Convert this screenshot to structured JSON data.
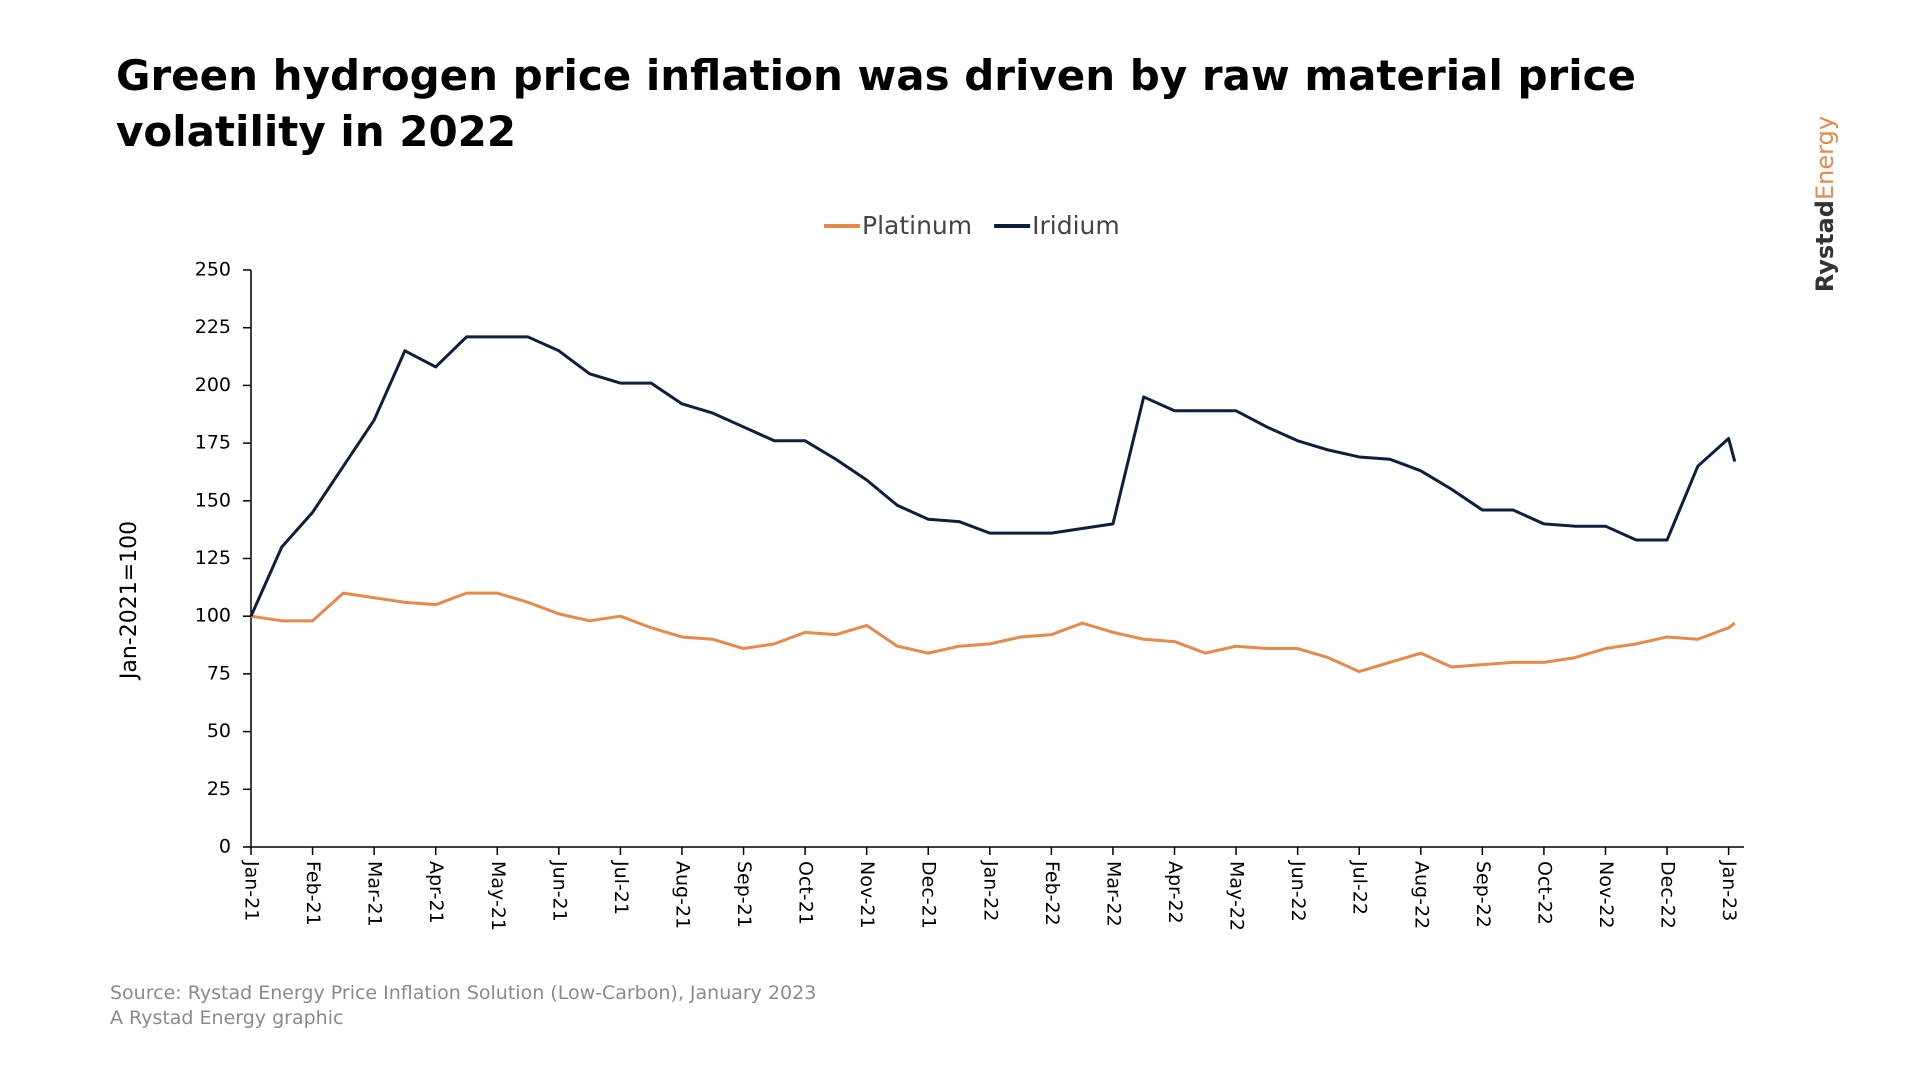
{
  "chart_data": {
    "type": "line",
    "title": "Green hydrogen price inflation was driven by raw material price volatility in 2022",
    "y_label": "Jan-2021=100",
    "source": "Source: Rystad Energy Price Inflation Solution (Low-Carbon), January 2023",
    "credit": "A Rystad Energy graphic",
    "brand": [
      "Rystad",
      "Energy"
    ],
    "legend": "top",
    "x": [
      0,
      0.5,
      1,
      1.5,
      2,
      2.5,
      3,
      3.5,
      4,
      4.5,
      5,
      5.5,
      6,
      6.5,
      7,
      7.5,
      8,
      8.5,
      9,
      9.5,
      10,
      10.5,
      11,
      11.5,
      12,
      12.5,
      13,
      13.5,
      14,
      14.5,
      15,
      15.5,
      16,
      16.5,
      17,
      17.5,
      18,
      18.5,
      19,
      19.5,
      20,
      20.5,
      21,
      21.5,
      22,
      22.5,
      23,
      23.5,
      24,
      24.1
    ],
    "xlim": [
      0,
      24.25
    ],
    "xticks": [
      {
        "value": 0,
        "label": "Jan-21"
      },
      {
        "value": 1,
        "label": "Feb-21"
      },
      {
        "value": 2,
        "label": "Mar-21"
      },
      {
        "value": 3,
        "label": "Apr-21"
      },
      {
        "value": 4,
        "label": "May-21"
      },
      {
        "value": 5,
        "label": "Jun-21"
      },
      {
        "value": 6,
        "label": "Jul-21"
      },
      {
        "value": 7,
        "label": "Aug-21"
      },
      {
        "value": 8,
        "label": "Sep-21"
      },
      {
        "value": 9,
        "label": "Oct-21"
      },
      {
        "value": 10,
        "label": "Nov-21"
      },
      {
        "value": 11,
        "label": "Dec-21"
      },
      {
        "value": 12,
        "label": "Jan-22"
      },
      {
        "value": 13,
        "label": "Feb-22"
      },
      {
        "value": 14,
        "label": "Mar-22"
      },
      {
        "value": 15,
        "label": "Apr-22"
      },
      {
        "value": 16,
        "label": "May-22"
      },
      {
        "value": 17,
        "label": "Jun-22"
      },
      {
        "value": 18,
        "label": "Jul-22"
      },
      {
        "value": 19,
        "label": "Aug-22"
      },
      {
        "value": 20,
        "label": "Sep-22"
      },
      {
        "value": 21,
        "label": "Oct-22"
      },
      {
        "value": 22,
        "label": "Nov-22"
      },
      {
        "value": 23,
        "label": "Dec-22"
      },
      {
        "value": 24,
        "label": "Jan-23"
      }
    ],
    "ylim": [
      0,
      250
    ],
    "yticks": [
      0,
      25,
      50,
      75,
      100,
      125,
      150,
      175,
      200,
      225,
      250
    ],
    "series": [
      {
        "name": "Platinum",
        "color": "#e8894a",
        "values": [
          100,
          98,
          98,
          110,
          108,
          106,
          105,
          110,
          110,
          106,
          101,
          98,
          100,
          95,
          91,
          90,
          86,
          88,
          93,
          92,
          96,
          87,
          84,
          87,
          88,
          91,
          92,
          97,
          93,
          90,
          89,
          84,
          87,
          86,
          86,
          82,
          76,
          80,
          84,
          78,
          79,
          80,
          80,
          82,
          86,
          88,
          91,
          90,
          95,
          97
        ]
      },
      {
        "name": "Iridium",
        "color": "#0d1f3c",
        "values": [
          100,
          130,
          145,
          165,
          185,
          215,
          208,
          221,
          221,
          221,
          215,
          205,
          201,
          201,
          192,
          188,
          182,
          176,
          176,
          168,
          159,
          148,
          142,
          141,
          136,
          136,
          136,
          138,
          140,
          195,
          189,
          189,
          189,
          182,
          176,
          172,
          169,
          168,
          163,
          155,
          146,
          146,
          140,
          139,
          139,
          133,
          133,
          165,
          177,
          167
        ]
      }
    ]
  }
}
